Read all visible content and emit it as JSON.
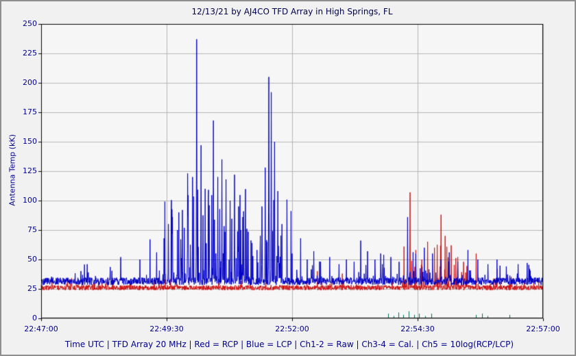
{
  "title": "12/13/21  by  AJ4CO TFD Array  in  High Springs, FL",
  "footer": "Time UTC | TFD Array 20 MHz | Red = RCP | Blue = LCP | Ch1-2 = Raw | Ch3-4 = Cal. | Ch5 = 10log(RCP/LCP)",
  "chart_data": {
    "type": "line",
    "title": "12/13/21  by  AJ4CO TFD Array  in  High Springs, FL",
    "xlabel": "Time UTC",
    "ylabel": "Antenna Temp (kK)",
    "ylim": [
      0,
      250
    ],
    "y_ticks": [
      0,
      25,
      50,
      75,
      100,
      125,
      150,
      175,
      200,
      225,
      250
    ],
    "x_ticks": [
      "22:47:00",
      "22:49:30",
      "22:52:00",
      "22:54:30",
      "22:57:00"
    ],
    "duration_s": 600,
    "grid": true,
    "seed": 42,
    "colors": {
      "grid": "#b5b5b5",
      "frame": "#000000",
      "plot_bg": "#f6f6f6"
    },
    "series": [
      {
        "name": "RCP (Red, raw)",
        "color": "#cc1111",
        "baseline": 26,
        "noise": 2.1,
        "floor": 22.5,
        "burst_regions": [
          [
            432,
            510,
            0.18,
            38
          ],
          [
            0,
            432,
            0.02,
            8
          ],
          [
            510,
            600,
            0.03,
            10
          ]
        ],
        "spikes": [
          [
            330,
            40
          ],
          [
            360,
            38
          ],
          [
            441,
            107
          ],
          [
            448,
            58
          ],
          [
            455,
            50
          ],
          [
            462,
            65
          ],
          [
            470,
            60
          ],
          [
            478,
            88
          ],
          [
            483,
            70
          ],
          [
            490,
            62
          ],
          [
            498,
            52
          ],
          [
            505,
            48
          ],
          [
            520,
            55
          ],
          [
            545,
            42
          ]
        ]
      },
      {
        "name": "LCP (Blue, raw)",
        "color": "#0000c4",
        "baseline": 31.5,
        "noise": 3.2,
        "floor": 24,
        "burst_regions": [
          [
            145,
            300,
            0.3,
            80
          ],
          [
            300,
            460,
            0.08,
            26
          ],
          [
            460,
            600,
            0.06,
            22
          ],
          [
            0,
            145,
            0.04,
            16
          ]
        ],
        "spikes": [
          [
            55,
            46
          ],
          [
            95,
            52
          ],
          [
            118,
            50
          ],
          [
            130,
            67
          ],
          [
            138,
            56
          ],
          [
            147,
            68
          ],
          [
            152,
            80
          ],
          [
            157,
            86
          ],
          [
            163,
            75
          ],
          [
            169,
            92
          ],
          [
            175,
            123
          ],
          [
            181,
            120
          ],
          [
            186,
            237
          ],
          [
            191,
            147
          ],
          [
            196,
            110
          ],
          [
            201,
            96
          ],
          [
            206,
            168
          ],
          [
            211,
            120
          ],
          [
            216,
            135
          ],
          [
            221,
            118
          ],
          [
            226,
            100
          ],
          [
            231,
            122
          ],
          [
            236,
            95
          ],
          [
            241,
            86
          ],
          [
            246,
            76
          ],
          [
            252,
            64
          ],
          [
            258,
            58
          ],
          [
            264,
            95
          ],
          [
            268,
            128
          ],
          [
            272,
            205
          ],
          [
            275,
            192
          ],
          [
            279,
            150
          ],
          [
            283,
            108
          ],
          [
            288,
            80
          ],
          [
            294,
            64
          ],
          [
            300,
            55
          ],
          [
            310,
            68
          ],
          [
            318,
            50
          ],
          [
            326,
            57
          ],
          [
            334,
            48
          ],
          [
            345,
            52
          ],
          [
            356,
            46
          ],
          [
            365,
            50
          ],
          [
            374,
            48
          ],
          [
            382,
            66
          ],
          [
            390,
            57
          ],
          [
            399,
            50
          ],
          [
            408,
            46
          ],
          [
            418,
            52
          ],
          [
            428,
            48
          ],
          [
            438,
            86
          ],
          [
            448,
            55
          ],
          [
            458,
            60
          ],
          [
            468,
            55
          ],
          [
            478,
            50
          ],
          [
            488,
            56
          ],
          [
            498,
            48
          ],
          [
            510,
            58
          ],
          [
            522,
            50
          ],
          [
            534,
            46
          ],
          [
            545,
            50
          ],
          [
            556,
            44
          ],
          [
            570,
            46
          ],
          [
            584,
            42
          ]
        ]
      },
      {
        "name": "Ch5 10log(RCP/LCP) (Green)",
        "color": "#006f55",
        "points": [
          [
            415,
            4
          ],
          [
            421,
            2
          ],
          [
            427,
            5
          ],
          [
            433,
            3
          ],
          [
            439,
            6
          ],
          [
            446,
            3
          ],
          [
            452,
            4
          ],
          [
            459,
            2
          ],
          [
            466,
            4
          ],
          [
            520,
            3
          ],
          [
            527,
            4
          ],
          [
            534,
            2
          ],
          [
            560,
            3
          ]
        ]
      }
    ]
  }
}
